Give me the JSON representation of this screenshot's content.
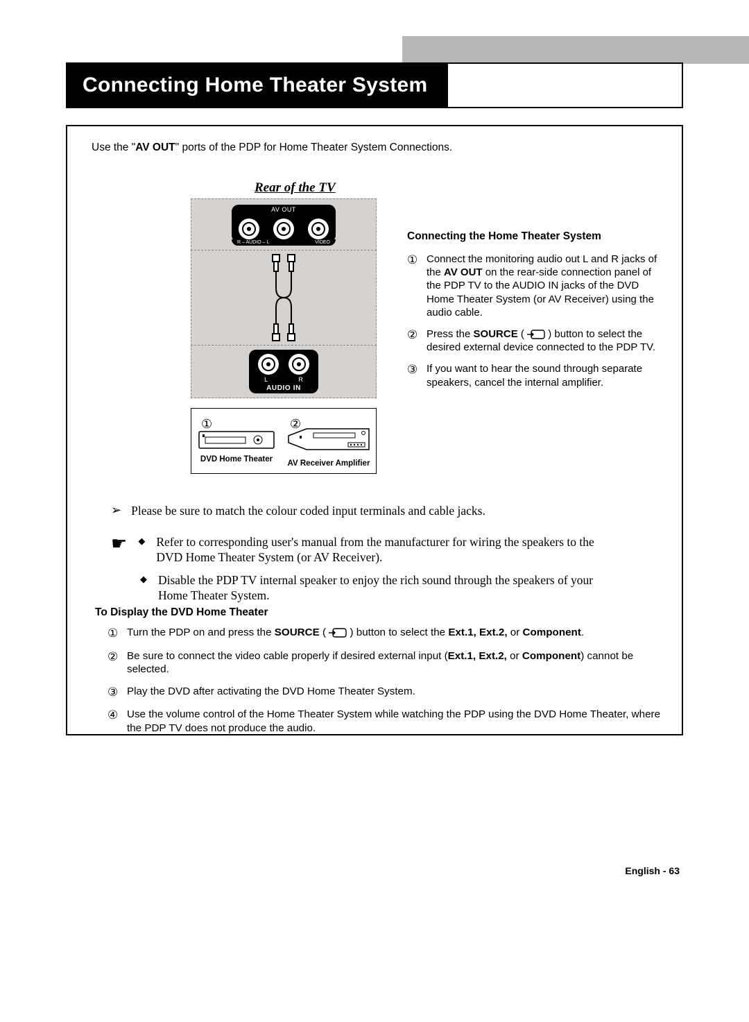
{
  "colors": {
    "gray_bar": "#b7b7b9",
    "panel_gray": "#d5d2cf",
    "dash_border": "#8a8a8a",
    "black": "#000000",
    "white": "#ffffff"
  },
  "title": "Connecting Home Theater System",
  "intro": {
    "pre": "Use the \"",
    "bold": "AV OUT",
    "post": "\" ports of the PDP for Home Theater System Connections."
  },
  "rear_label": "Rear of the TV",
  "panel": {
    "av_out": "AV OUT",
    "audio_l": "– AUDIO –",
    "r_mark": "R",
    "l_mark": "L",
    "video": "VIDEO",
    "audio_in": "AUDIO IN",
    "L": "L",
    "R": "R"
  },
  "devices": {
    "num1": "①",
    "num2": "②",
    "dvd": "DVD Home Theater",
    "avr": "AV Receiver Amplifier"
  },
  "right": {
    "title": "Connecting the Home Theater System",
    "items": [
      {
        "n": "①",
        "parts": [
          {
            "t": "Connect the monitoring audio out L and R jacks of the "
          },
          {
            "t": "AV OUT",
            "b": true
          },
          {
            "t": " on the rear-side connection panel of the PDP TV to the AUDIO IN jacks of the DVD Home Theater System (or AV Receiver) using the audio cable."
          }
        ]
      },
      {
        "n": "②",
        "parts": [
          {
            "t": "Press the "
          },
          {
            "t": "SOURCE",
            "b": true
          },
          {
            "t": " ( "
          },
          {
            "icon": true
          },
          {
            "t": " ) button to select the desired external device connected to the PDP TV."
          }
        ]
      },
      {
        "n": "③",
        "parts": [
          {
            "t": "If you want to hear the sound through separate speakers, cancel the internal amplifier."
          }
        ]
      }
    ]
  },
  "note1": "Please be sure to match the colour coded input terminals and cable jacks.",
  "note2a": "Refer to corresponding user's manual from the manufacturer for wiring the speakers to the DVD Home Theater System (or AV Receiver).",
  "note2b": "Disable the PDP TV internal speaker to enjoy the rich sound through the speakers of your Home Theater System.",
  "sec2": {
    "title": "To Display the DVD Home Theater",
    "items": [
      {
        "n": "①",
        "parts": [
          {
            "t": "Turn the PDP on and press the "
          },
          {
            "t": "SOURCE",
            "b": true
          },
          {
            "t": " ( "
          },
          {
            "icon": true
          },
          {
            "t": " ) button to select the "
          },
          {
            "t": "Ext.1, Ext.2,",
            "b": true
          },
          {
            "t": " or "
          },
          {
            "t": "Component",
            "b": true
          },
          {
            "t": "."
          }
        ]
      },
      {
        "n": "②",
        "parts": [
          {
            "t": "Be sure to connect the video cable properly if desired external input ("
          },
          {
            "t": "Ext.1, Ext.2,",
            "b": true
          },
          {
            "t": " or "
          },
          {
            "t": "Component",
            "b": true
          },
          {
            "t": ") cannot be selected."
          }
        ]
      },
      {
        "n": "③",
        "parts": [
          {
            "t": "Play the DVD after activating the DVD Home Theater System."
          }
        ]
      },
      {
        "n": "④",
        "parts": [
          {
            "t": "Use the volume control of the Home Theater System while watching the PDP using the DVD Home Theater, where the PDP TV does not produce the audio."
          }
        ]
      }
    ]
  },
  "footer": "English - 63"
}
